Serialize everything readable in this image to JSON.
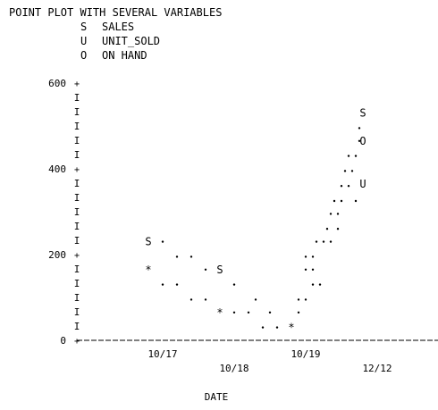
{
  "chart_data": {
    "type": "scatter",
    "title": "POINT PLOT WITH SEVERAL VARIABLES",
    "legend": [
      {
        "symbol": "S",
        "label": "SALES"
      },
      {
        "symbol": "U",
        "label": "UNIT_SOLD"
      },
      {
        "symbol": "O",
        "label": "ON HAND"
      }
    ],
    "xlabel": "DATE",
    "ylabel": "",
    "ylim": [
      0,
      600
    ],
    "y_ticks": [
      "0",
      "200",
      "400",
      "600"
    ],
    "x_ticks": [
      "10/17",
      "10/18",
      "10/19",
      "12/12"
    ],
    "grid": false,
    "markers": [
      {
        "symbol": "S",
        "x": 0,
        "y": 230
      },
      {
        "symbol": "*",
        "x": 0,
        "y": 165
      },
      {
        "symbol": "S",
        "x": 1,
        "y": 165
      },
      {
        "symbol": "*",
        "x": 1,
        "y": 65
      },
      {
        "symbol": "*",
        "x": 2,
        "y": 30
      },
      {
        "symbol": "S",
        "x": 3,
        "y": 530
      },
      {
        "symbol": "O",
        "x": 3,
        "y": 465
      },
      {
        "symbol": "U",
        "x": 3,
        "y": 365
      }
    ],
    "dots": [
      {
        "x": 0.2,
        "y": 230
      },
      {
        "x": 0.4,
        "y": 195
      },
      {
        "x": 0.6,
        "y": 195
      },
      {
        "x": 0.8,
        "y": 165
      },
      {
        "x": 0.2,
        "y": 130
      },
      {
        "x": 0.4,
        "y": 130
      },
      {
        "x": 0.6,
        "y": 95
      },
      {
        "x": 0.8,
        "y": 95
      },
      {
        "x": 1.2,
        "y": 130
      },
      {
        "x": 1.5,
        "y": 95
      },
      {
        "x": 1.2,
        "y": 65
      },
      {
        "x": 1.4,
        "y": 65
      },
      {
        "x": 1.7,
        "y": 65
      },
      {
        "x": 1.6,
        "y": 30
      },
      {
        "x": 1.8,
        "y": 30
      },
      {
        "x": 2.1,
        "y": 95
      },
      {
        "x": 2.2,
        "y": 95
      },
      {
        "x": 2.1,
        "y": 65
      },
      {
        "x": 2.3,
        "y": 130
      },
      {
        "x": 2.4,
        "y": 130
      },
      {
        "x": 2.2,
        "y": 165
      },
      {
        "x": 2.3,
        "y": 165
      },
      {
        "x": 2.2,
        "y": 195
      },
      {
        "x": 2.3,
        "y": 195
      },
      {
        "x": 2.35,
        "y": 230
      },
      {
        "x": 2.45,
        "y": 230
      },
      {
        "x": 2.55,
        "y": 230
      },
      {
        "x": 2.5,
        "y": 260
      },
      {
        "x": 2.65,
        "y": 260
      },
      {
        "x": 2.55,
        "y": 295
      },
      {
        "x": 2.65,
        "y": 295
      },
      {
        "x": 2.6,
        "y": 325
      },
      {
        "x": 2.7,
        "y": 325
      },
      {
        "x": 2.9,
        "y": 325
      },
      {
        "x": 2.7,
        "y": 360
      },
      {
        "x": 2.8,
        "y": 360
      },
      {
        "x": 2.75,
        "y": 395
      },
      {
        "x": 2.85,
        "y": 395
      },
      {
        "x": 2.8,
        "y": 430
      },
      {
        "x": 2.9,
        "y": 430
      },
      {
        "x": 2.95,
        "y": 465
      },
      {
        "x": 2.95,
        "y": 495
      }
    ]
  }
}
